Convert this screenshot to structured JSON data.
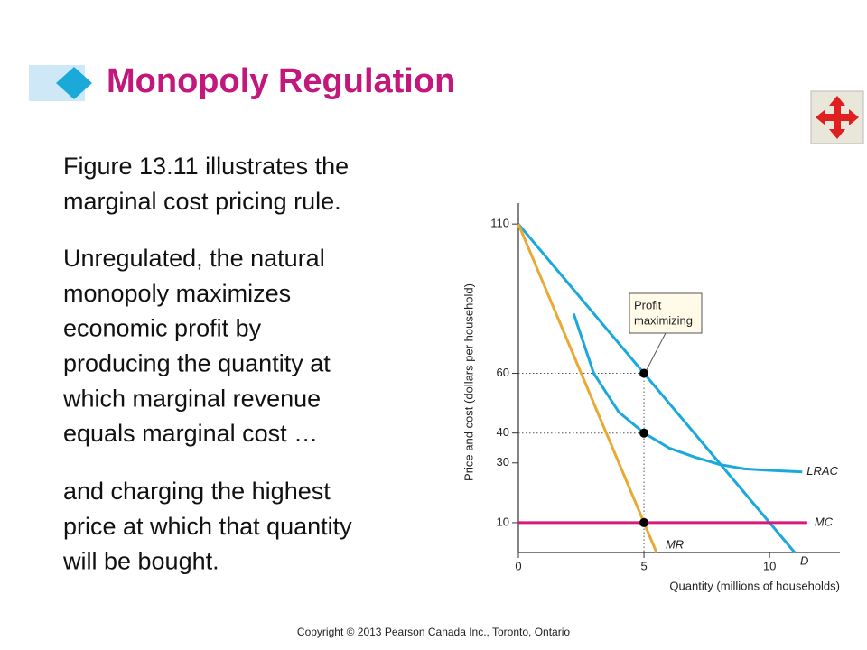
{
  "header": {
    "title": "Monopoly Regulation"
  },
  "paragraphs": [
    [
      "Figure 13.11 illustrates the",
      "marginal cost pricing rule."
    ],
    [
      "Unregulated, the natural",
      "monopoly maximizes",
      "economic profit by",
      "producing the quantity at",
      "which marginal revenue",
      "equals marginal cost …"
    ],
    [
      "and charging the highest",
      "price at which that quantity",
      "will be bought."
    ]
  ],
  "chart_data": {
    "type": "line",
    "x_label": "Quantity (millions of households)",
    "y_label": "Price and cost (dollars per household)",
    "xlim": [
      0,
      12.8
    ],
    "ylim": [
      0,
      117
    ],
    "xticks": [
      0,
      5,
      10
    ],
    "yticks": [
      10,
      30,
      40,
      60,
      110
    ],
    "series": [
      {
        "name": "D",
        "color": "#1ba9da",
        "x": [
          0,
          11
        ],
        "values": [
          110,
          0
        ]
      },
      {
        "name": "MR",
        "color": "#e9a935",
        "x": [
          0,
          5.5
        ],
        "values": [
          110,
          0
        ]
      },
      {
        "name": "MC",
        "color": "#d6197c",
        "x": [
          0,
          11.5
        ],
        "values": [
          10,
          10
        ]
      },
      {
        "name": "LRAC",
        "color": "#1ba9da",
        "x": [
          2.2,
          3,
          4,
          5,
          6,
          7,
          8,
          9,
          10,
          11.3
        ],
        "values": [
          80,
          60,
          47,
          40,
          35,
          32,
          29.5,
          28,
          27.5,
          27
        ]
      }
    ],
    "highlight_points": {
      "x": [
        5,
        5,
        5
      ],
      "values": [
        60,
        40,
        10
      ]
    },
    "annotation": [
      "Profit",
      "maximizing"
    ]
  },
  "footer": "Copyright © 2013 Pearson Canada Inc., Toronto, Ontario"
}
